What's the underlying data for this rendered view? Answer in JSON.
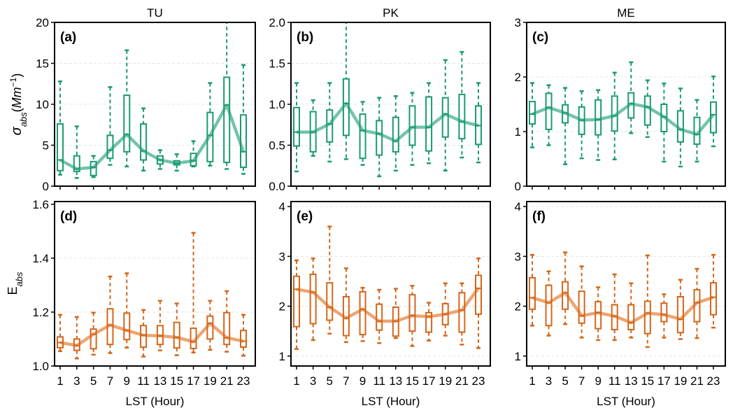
{
  "chart_data": [
    {
      "id": "a",
      "type": "box",
      "panel_label": "(a)",
      "title": "TU",
      "ylabel": "σ_abs(Mm^-1)",
      "xlabel": "",
      "ylim": [
        0,
        20
      ],
      "yticks": [
        0,
        5,
        10,
        15,
        20
      ],
      "ytick_labels": [
        "0",
        "5",
        "10",
        "15",
        "20"
      ],
      "grid": "horizontal-dashed",
      "color": "#1a9a74",
      "line_color": "#5bb89a",
      "x": [
        1,
        3,
        5,
        7,
        9,
        11,
        13,
        15,
        17,
        19,
        21,
        23
      ],
      "whisker_low": [
        1.4,
        1.0,
        1.1,
        2.6,
        2.4,
        1.9,
        2.1,
        1.9,
        2.4,
        2.5,
        2.1,
        1.5
      ],
      "q1": [
        1.9,
        1.8,
        1.3,
        3.4,
        4.2,
        3.2,
        2.7,
        2.6,
        2.5,
        3.0,
        2.9,
        2.3
      ],
      "median": [
        3.2,
        2.1,
        2.3,
        4.4,
        6.3,
        4.3,
        3.2,
        2.8,
        3.1,
        6.2,
        9.9,
        4.2
      ],
      "q3": [
        7.6,
        3.7,
        3.0,
        6.2,
        11.1,
        7.6,
        3.7,
        3.1,
        4.0,
        9.0,
        13.3,
        8.7
      ],
      "whisker_high": [
        12.8,
        7.3,
        3.7,
        12.1,
        16.6,
        9.5,
        4.4,
        3.9,
        5.5,
        12.6,
        21.0,
        14.8
      ]
    },
    {
      "id": "b",
      "type": "box",
      "panel_label": "(b)",
      "title": "PK",
      "ylabel": "",
      "xlabel": "",
      "ylim": [
        0,
        2.0
      ],
      "yticks": [
        0,
        0.5,
        1.0,
        1.5,
        2.0
      ],
      "ytick_labels": [
        "0.0",
        "0.5",
        "1.0",
        "1.5",
        "2.0"
      ],
      "grid": "horizontal-dashed",
      "color": "#1a9a74",
      "line_color": "#5bb89a",
      "x": [
        1,
        3,
        5,
        7,
        9,
        11,
        13,
        15,
        17,
        19,
        21,
        23
      ],
      "whisker_low": [
        0.18,
        0.37,
        0.3,
        0.33,
        0.26,
        0.12,
        0.19,
        0.26,
        0.28,
        0.19,
        0.35,
        0.29
      ],
      "q1": [
        0.49,
        0.42,
        0.54,
        0.62,
        0.34,
        0.38,
        0.42,
        0.5,
        0.43,
        0.6,
        0.58,
        0.51
      ],
      "median": [
        0.66,
        0.66,
        0.76,
        1.01,
        0.68,
        0.64,
        0.55,
        0.72,
        0.72,
        0.88,
        0.79,
        0.74
      ],
      "q3": [
        0.96,
        0.91,
        0.93,
        1.31,
        0.88,
        0.8,
        0.84,
        0.98,
        1.09,
        1.08,
        1.12,
        0.98
      ],
      "whisker_high": [
        1.26,
        1.05,
        1.26,
        2.1,
        1.03,
        1.08,
        1.1,
        1.14,
        1.26,
        1.54,
        1.64,
        1.26
      ]
    },
    {
      "id": "c",
      "type": "box",
      "panel_label": "(c)",
      "title": "ME",
      "ylabel": "",
      "xlabel": "",
      "ylim": [
        0,
        3
      ],
      "yticks": [
        0,
        1,
        2,
        3
      ],
      "ytick_labels": [
        "0",
        "1",
        "2",
        "3"
      ],
      "grid": "horizontal-dashed",
      "color": "#1a9a74",
      "line_color": "#5bb89a",
      "x": [
        1,
        3,
        5,
        7,
        9,
        11,
        13,
        15,
        17,
        19,
        21,
        23
      ],
      "whisker_low": [
        0.71,
        0.75,
        0.4,
        0.51,
        0.48,
        0.49,
        0.97,
        0.9,
        0.45,
        0.36,
        0.45,
        0.73
      ],
      "q1": [
        1.14,
        1.04,
        1.16,
        0.95,
        0.94,
        1.01,
        1.25,
        1.12,
        1.0,
        0.81,
        0.77,
        0.98
      ],
      "median": [
        1.32,
        1.44,
        1.34,
        1.21,
        1.22,
        1.29,
        1.51,
        1.45,
        1.27,
        1.04,
        0.95,
        1.31
      ],
      "q3": [
        1.55,
        1.7,
        1.49,
        1.45,
        1.58,
        1.65,
        1.71,
        1.65,
        1.5,
        1.38,
        1.26,
        1.54
      ],
      "whisker_high": [
        1.89,
        1.85,
        1.8,
        1.74,
        1.76,
        2.08,
        2.27,
        1.94,
        1.88,
        1.79,
        1.58,
        2.01
      ]
    },
    {
      "id": "d",
      "type": "box",
      "panel_label": "(d)",
      "title": "",
      "ylabel": "E_abs",
      "xlabel": "LST (Hour)",
      "ylim": [
        1.0,
        1.61
      ],
      "yticks": [
        1.0,
        1.2,
        1.4,
        1.6
      ],
      "ytick_labels": [
        "1.0",
        "1.2",
        "1.4",
        "1.6"
      ],
      "grid": "horizontal-dashed",
      "color": "#d4661a",
      "line_color": "#e8955a",
      "x": [
        1,
        3,
        5,
        7,
        9,
        11,
        13,
        15,
        17,
        19,
        21,
        23
      ],
      "xtick_labels": [
        "1",
        "3",
        "5",
        "7",
        "9",
        "11",
        "13",
        "15",
        "17",
        "19",
        "21",
        "23"
      ],
      "whisker_low": [
        1.055,
        1.028,
        1.042,
        1.048,
        1.068,
        1.035,
        1.058,
        1.04,
        1.05,
        1.06,
        1.053,
        1.038
      ],
      "q1": [
        1.068,
        1.058,
        1.064,
        1.08,
        1.098,
        1.07,
        1.08,
        1.067,
        1.065,
        1.1,
        1.08,
        1.07
      ],
      "median": [
        1.087,
        1.076,
        1.118,
        1.152,
        1.132,
        1.114,
        1.112,
        1.106,
        1.09,
        1.158,
        1.105,
        1.092
      ],
      "q3": [
        1.108,
        1.1,
        1.137,
        1.212,
        1.196,
        1.15,
        1.15,
        1.162,
        1.14,
        1.185,
        1.198,
        1.132
      ],
      "whisker_high": [
        1.19,
        1.182,
        1.198,
        1.332,
        1.344,
        1.208,
        1.242,
        1.232,
        1.494,
        1.242,
        1.278,
        1.19
      ]
    },
    {
      "id": "e",
      "type": "box",
      "panel_label": "(e)",
      "title": "",
      "ylabel": "",
      "xlabel": "LST (Hour)",
      "ylim": [
        0.8,
        4.1
      ],
      "yticks": [
        1,
        2,
        3,
        4
      ],
      "ytick_labels": [
        "1",
        "2",
        "3",
        "4"
      ],
      "grid": "horizontal-dashed",
      "color": "#d4661a",
      "line_color": "#e8955a",
      "x": [
        1,
        3,
        5,
        7,
        9,
        11,
        13,
        15,
        17,
        19,
        21,
        23
      ],
      "xtick_labels": [
        "1",
        "3",
        "5",
        "7",
        "9",
        "11",
        "13",
        "15",
        "17",
        "19",
        "21",
        "23"
      ],
      "whisker_low": [
        1.14,
        1.32,
        1.45,
        1.28,
        1.3,
        1.26,
        1.36,
        1.2,
        1.31,
        1.41,
        1.23,
        1.16
      ],
      "q1": [
        1.59,
        1.65,
        1.72,
        1.41,
        1.43,
        1.52,
        1.4,
        1.5,
        1.48,
        1.63,
        1.48,
        1.84
      ],
      "median": [
        2.34,
        2.28,
        1.98,
        1.76,
        1.94,
        1.7,
        1.7,
        1.81,
        1.79,
        1.84,
        1.92,
        2.36
      ],
      "q3": [
        2.6,
        2.64,
        2.47,
        2.19,
        2.29,
        2.04,
        1.98,
        2.23,
        1.87,
        2.05,
        2.27,
        2.62
      ],
      "whisker_high": [
        2.92,
        2.96,
        3.6,
        2.76,
        2.37,
        2.33,
        2.35,
        2.41,
        2.07,
        2.46,
        2.46,
        2.96
      ]
    },
    {
      "id": "f",
      "type": "box",
      "panel_label": "(f)",
      "title": "",
      "ylabel": "",
      "xlabel": "LST (Hour)",
      "ylim": [
        0.8,
        4.1
      ],
      "yticks": [
        1,
        2,
        3,
        4
      ],
      "ytick_labels": [
        "1",
        "2",
        "3",
        "4"
      ],
      "grid": "horizontal-dashed",
      "color": "#d4661a",
      "line_color": "#e8955a",
      "x": [
        1,
        3,
        5,
        7,
        9,
        11,
        13,
        15,
        17,
        19,
        21,
        23
      ],
      "xtick_labels": [
        "1",
        "3",
        "5",
        "7",
        "9",
        "11",
        "13",
        "15",
        "17",
        "19",
        "21",
        "23"
      ],
      "whisker_low": [
        1.61,
        1.41,
        1.64,
        1.37,
        1.32,
        1.32,
        1.37,
        1.18,
        1.37,
        1.34,
        1.36,
        1.57
      ],
      "q1": [
        1.94,
        1.61,
        1.94,
        1.66,
        1.55,
        1.53,
        1.53,
        1.45,
        1.69,
        1.47,
        1.69,
        1.83
      ],
      "median": [
        2.17,
        2.07,
        2.27,
        1.81,
        1.87,
        1.8,
        1.67,
        1.86,
        1.83,
        1.74,
        2.07,
        2.18
      ],
      "q3": [
        2.57,
        2.42,
        2.49,
        2.3,
        2.09,
        2.03,
        2.03,
        2.1,
        2.06,
        2.19,
        2.33,
        2.47
      ],
      "whisker_high": [
        3.03,
        2.7,
        3.08,
        2.8,
        2.38,
        2.64,
        2.46,
        3.02,
        2.24,
        2.53,
        2.75,
        3.03
      ]
    }
  ]
}
